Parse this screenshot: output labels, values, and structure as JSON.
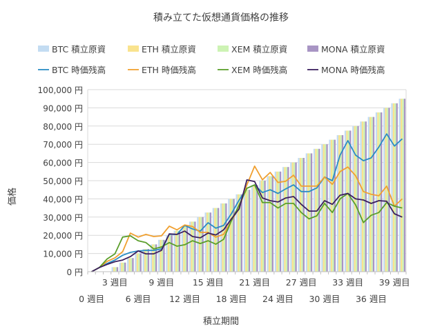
{
  "chart_data": {
    "type": "bar+line",
    "title": "積み立てた仮想通貨価格の推移",
    "xlabel": "積立期間",
    "ylabel": "価格",
    "ylim": [
      0,
      100000
    ],
    "y_ticks": [
      "0 円",
      "10,000 円",
      "20,000 円",
      "30,000 円",
      "40,000 円",
      "50,000 円",
      "60,000 円",
      "70,000 円",
      "80,000 円",
      "90,000 円",
      "100,000 円"
    ],
    "grid": true,
    "legend": "top",
    "categories": [
      "0 週目",
      "1 週目",
      "2 週目",
      "3 週目",
      "4 週目",
      "5 週目",
      "6 週目",
      "7 週目",
      "8 週目",
      "9 週目",
      "10 週目",
      "11 週目",
      "12 週目",
      "13 週目",
      "14 週目",
      "15 週目",
      "16 週目",
      "17 週目",
      "18 週目",
      "19 週目",
      "20 週目",
      "21 週目",
      "22 週目",
      "23 週目",
      "24 週目",
      "25 週目",
      "26 週目",
      "27 週目",
      "28 週目",
      "29 週目",
      "30 週目",
      "31 週目",
      "32 週目",
      "33 週目",
      "34 週目",
      "35 週目",
      "36 週目",
      "37 週目",
      "38 週目",
      "39 週目",
      "40 週目"
    ],
    "visible_tick_labels": [
      "0 週目",
      "3 週目",
      "6 週目",
      "9 週目",
      "12 週目",
      "15 週目",
      "18 週目",
      "21 週目",
      "24 週目",
      "27 週目",
      "30 週目",
      "33 週目",
      "36 週目",
      "39 週目"
    ],
    "bar_series": [
      {
        "name": "BTC  積立原資",
        "color": "#c3dcf2"
      },
      {
        "name": "ETH  積立原資",
        "color": "#f9e38e"
      },
      {
        "name": "XEM  積立原資",
        "color": "#cdf3b4"
      },
      {
        "name": "MONA  積立原資",
        "color": "#a895c4"
      }
    ],
    "bar_values": [
      0,
      0,
      0,
      2500,
      5000,
      7500,
      10000,
      12500,
      15000,
      17500,
      20000,
      22500,
      25000,
      27500,
      30000,
      32500,
      35000,
      37500,
      40000,
      42500,
      45000,
      47500,
      50000,
      52500,
      55000,
      57500,
      60000,
      62500,
      65000,
      67500,
      70000,
      72500,
      75000,
      77500,
      80000,
      82500,
      85000,
      87500,
      90000,
      92500,
      95000
    ],
    "line_series": [
      {
        "name": "BTC  時価残高",
        "color": "#2a8cc4",
        "values": [
          0,
          2300,
          4500,
          6400,
          9000,
          10600,
          11400,
          11700,
          11700,
          12500,
          20500,
          20500,
          25400,
          23500,
          22300,
          26900,
          23900,
          25400,
          31800,
          39400,
          45800,
          47700,
          43500,
          45000,
          43000,
          45500,
          47700,
          44000,
          44000,
          46000,
          52000,
          50000,
          64000,
          72000,
          64000,
          61000,
          62500,
          68500,
          75700,
          69000,
          73000
        ]
      },
      {
        "name": "ETH  時価残高",
        "color": "#f0a030",
        "values": [
          0,
          2300,
          5700,
          7600,
          11000,
          21200,
          19000,
          20500,
          19300,
          19700,
          25000,
          23000,
          25700,
          24800,
          21600,
          21600,
          19000,
          20500,
          28000,
          35000,
          47700,
          58000,
          50500,
          54500,
          49000,
          49700,
          53000,
          47000,
          47000,
          47000,
          52000,
          48000,
          55000,
          57500,
          52700,
          44000,
          42500,
          41700,
          47000,
          36000,
          40000
        ]
      },
      {
        "name": "XEM  時価残高",
        "color": "#5a9e2a",
        "values": [
          0,
          2300,
          7000,
          9800,
          19000,
          19700,
          17000,
          16000,
          12500,
          13600,
          16000,
          14000,
          14800,
          17000,
          15500,
          17000,
          15100,
          17800,
          28000,
          36700,
          45800,
          47700,
          38000,
          38000,
          35000,
          37500,
          37500,
          32500,
          29000,
          30700,
          37500,
          32500,
          40000,
          43000,
          36700,
          27000,
          31000,
          32500,
          38000,
          36000,
          35000
        ]
      },
      {
        "name": "MONA  時価残高",
        "color": "#3b1f5e",
        "values": [
          0,
          2300,
          4000,
          5500,
          6400,
          8300,
          11400,
          9800,
          9800,
          11700,
          20800,
          20500,
          22300,
          19300,
          18600,
          21200,
          20200,
          23000,
          29000,
          34500,
          50400,
          49500,
          40500,
          39000,
          38300,
          40500,
          41300,
          37000,
          33300,
          33300,
          39000,
          37000,
          42000,
          43000,
          40000,
          39400,
          37500,
          39000,
          38700,
          31800,
          30000
        ]
      }
    ]
  }
}
